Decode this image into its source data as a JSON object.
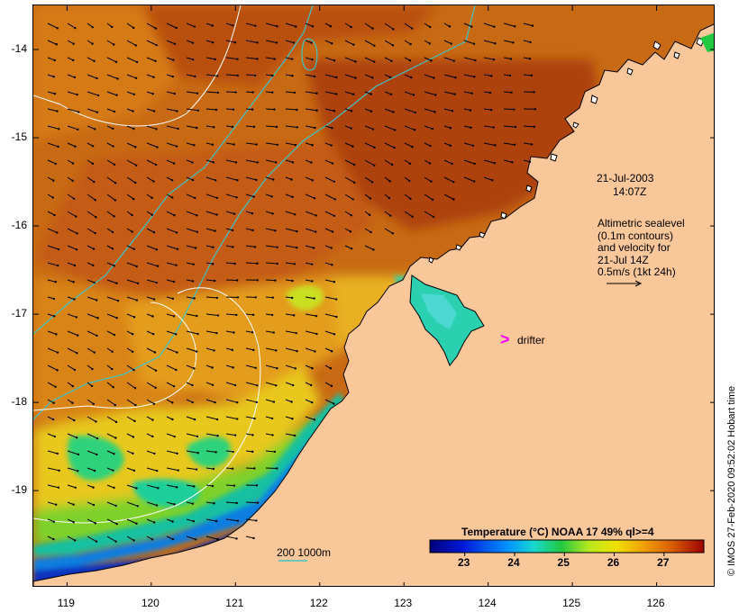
{
  "map": {
    "lon_ticks": [
      "119",
      "120",
      "121",
      "122",
      "123",
      "124",
      "125",
      "126"
    ],
    "lat_ticks": [
      "-14",
      "-15",
      "-16",
      "-17",
      "-18",
      "-19"
    ],
    "lon_range": [
      118.6,
      126.7
    ],
    "lat_range": [
      -20.1,
      -13.5
    ]
  },
  "annotations": {
    "date": "21-Jul-2003",
    "time": "14:07Z",
    "legend_line1": "Altimetric sealevel",
    "legend_line2": "(0.1m contours)",
    "legend_line3": "and velocity for",
    "legend_line4": "21-Jul 14Z",
    "legend_line5": "0.5m/s (1kt 24h)",
    "drifter_marker": ">",
    "drifter_label": "drifter",
    "isobaths": "200  1000m",
    "credit": "© IMOS 27-Feb-2020 09:52:02 Hobart time"
  },
  "colorbar": {
    "title": "Temperature (°C) NOAA 17 49% ql>=4",
    "ticks": [
      "23",
      "24",
      "25",
      "26",
      "27"
    ],
    "range": [
      22.3,
      27.8
    ]
  },
  "colors": {
    "land": "#f9c79a",
    "drifter": "#ff00ff",
    "isobath": "#3fc4c4",
    "sealevel_contour": "#ffffff"
  }
}
